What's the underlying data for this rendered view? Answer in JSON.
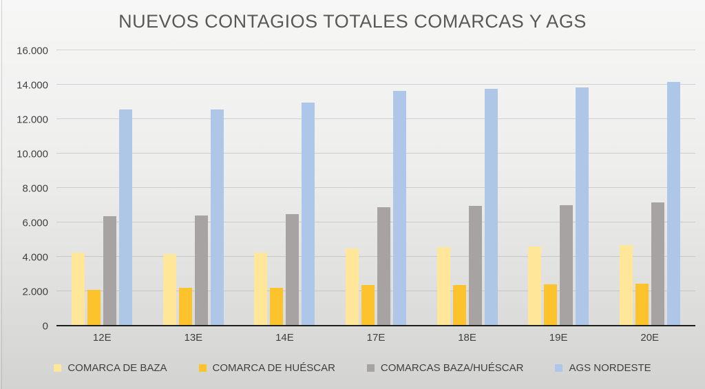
{
  "chart_data": {
    "type": "bar",
    "title": "NUEVOS CONTAGIOS TOTALES COMARCAS Y AGS",
    "categories": [
      "12E",
      "13E",
      "14E",
      "17E",
      "18E",
      "19E",
      "20E"
    ],
    "series": [
      {
        "name": "COMARCA DE BAZA",
        "color": "#FFE699",
        "values": [
          4250,
          4150,
          4250,
          4500,
          4550,
          4600,
          4700
        ]
      },
      {
        "name": "COMARCA DE HUÉSCAR",
        "color": "#FDC32C",
        "values": [
          2100,
          2200,
          2200,
          2350,
          2350,
          2400,
          2450
        ]
      },
      {
        "name": "COMARCAS BAZA/HUÉSCAR",
        "color": "#A6A3A2",
        "values": [
          6350,
          6400,
          6500,
          6900,
          6950,
          7000,
          7150
        ]
      },
      {
        "name": "AGS NORDESTE",
        "color": "#AEC6E8",
        "values": [
          12550,
          12550,
          12950,
          13650,
          13750,
          13850,
          14150
        ]
      }
    ],
    "ylim": [
      0,
      16000
    ],
    "ytick_interval": 2000,
    "ytick_labels": [
      "0",
      "2.000",
      "4.000",
      "6.000",
      "8.000",
      "10.000",
      "12.000",
      "14.000",
      "16.000"
    ],
    "grid": true,
    "legend_position": "bottom",
    "xlabel": "",
    "ylabel": ""
  },
  "colors": {
    "title_text": "#595959",
    "axis_text": "#3F3F3F",
    "axis_line": "#1F1F1F",
    "gridline": "#9B9B99"
  }
}
